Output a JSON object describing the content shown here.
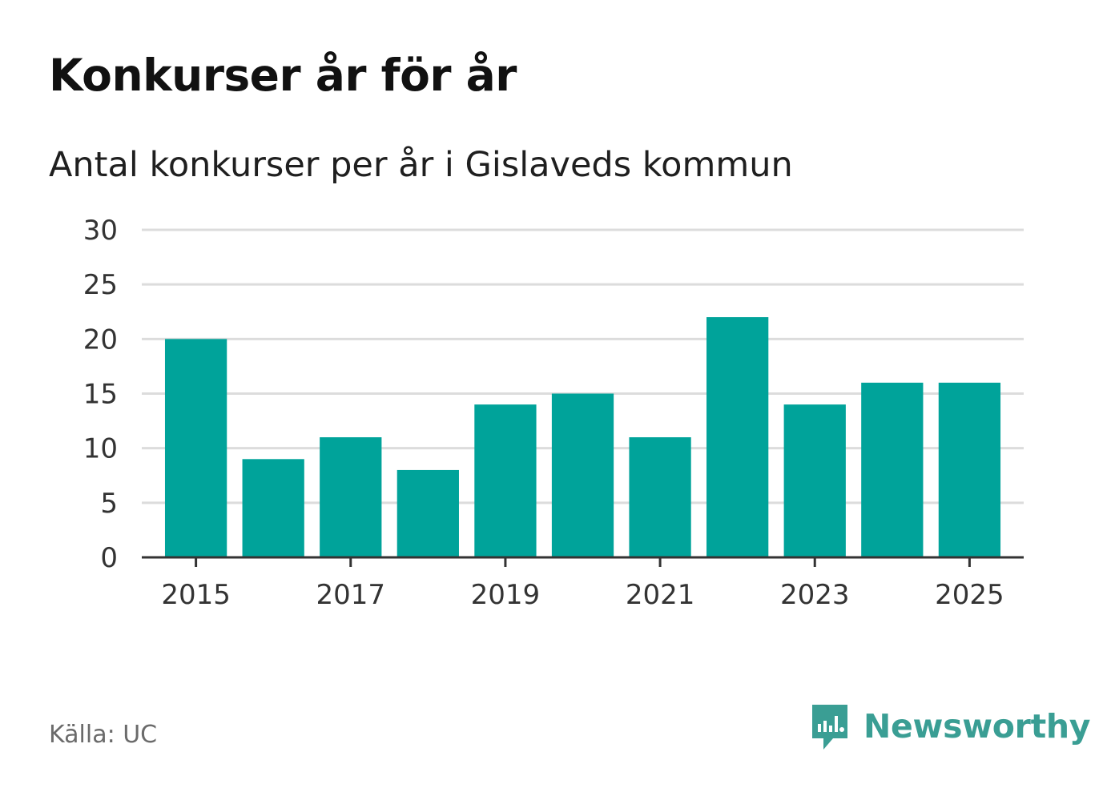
{
  "title": "Konkurser år för år",
  "subtitle": "Antal konkurser per år i Gislaveds kommun",
  "source": "Källa: UC",
  "brand": {
    "name": "Newsworthy",
    "icon": "newsworthy-logo-icon",
    "color": "#3a9e94"
  },
  "colors": {
    "bar": "#00a39a",
    "grid": "#dcdcdc",
    "axis": "#333333",
    "tick_text": "#333333"
  },
  "chart_data": {
    "type": "bar",
    "title": "Konkurser år för år",
    "subtitle": "Antal konkurser per år i Gislaveds kommun",
    "categories": [
      "2015",
      "2016",
      "2017",
      "2018",
      "2019",
      "2020",
      "2021",
      "2022",
      "2023",
      "2024",
      "2025"
    ],
    "values": [
      20,
      9,
      11,
      8,
      14,
      15,
      11,
      22,
      14,
      16,
      16
    ],
    "x_tick_labels": [
      "2015",
      "2017",
      "2019",
      "2021",
      "2023",
      "2025"
    ],
    "y_ticks": [
      0,
      5,
      10,
      15,
      20,
      25,
      30
    ],
    "ylim": [
      0,
      30
    ],
    "xlabel": "",
    "ylabel": "",
    "grid": true,
    "legend": "none"
  }
}
